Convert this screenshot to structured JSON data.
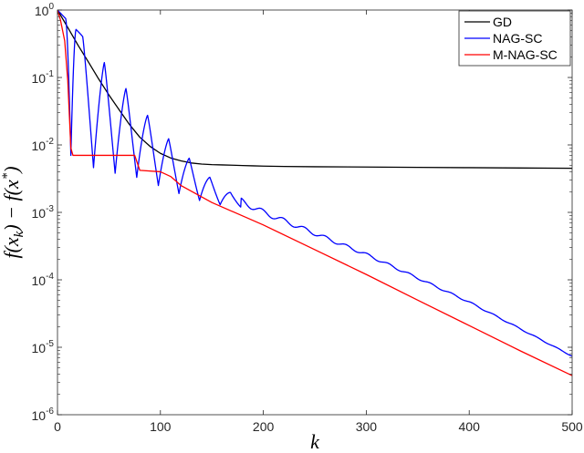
{
  "chart_data": {
    "type": "line",
    "title": "",
    "xlabel": "k",
    "ylabel": "f(x_k) − f(x*)",
    "yscale": "log",
    "xlim": [
      0,
      500
    ],
    "ylim": [
      1e-06,
      1
    ],
    "x_ticks": [
      0,
      100,
      200,
      300,
      400,
      500
    ],
    "x_tick_labels": [
      "0",
      "100",
      "200",
      "300",
      "400",
      "500"
    ],
    "y_ticks": [
      1e-06,
      1e-05,
      0.0001,
      0.001,
      0.01,
      0.1,
      1
    ],
    "y_tick_labels": [
      {
        "base": "10",
        "exp": "-6"
      },
      {
        "base": "10",
        "exp": "-5"
      },
      {
        "base": "10",
        "exp": "-4"
      },
      {
        "base": "10",
        "exp": "-3"
      },
      {
        "base": "10",
        "exp": "-2"
      },
      {
        "base": "10",
        "exp": "-1"
      },
      {
        "base": "10",
        "exp": "0"
      }
    ],
    "grid": false,
    "legend_position": "top-right",
    "series": [
      {
        "name": "GD",
        "color": "#000000",
        "x": [
          0,
          10,
          20,
          30,
          40,
          50,
          60,
          70,
          80,
          90,
          100,
          110,
          120,
          130,
          140,
          150,
          160,
          170,
          180,
          190,
          200,
          220,
          250,
          300,
          350,
          400,
          450,
          500
        ],
        "y": [
          1.0,
          0.55,
          0.3,
          0.17,
          0.095,
          0.055,
          0.033,
          0.02,
          0.013,
          0.0095,
          0.0075,
          0.0064,
          0.0058,
          0.0054,
          0.0052,
          0.0051,
          0.00505,
          0.005,
          0.00495,
          0.0049,
          0.00485,
          0.0048,
          0.00475,
          0.0047,
          0.00465,
          0.0046,
          0.00455,
          0.0045
        ]
      },
      {
        "name": "NAG-SC",
        "color": "#0000ff",
        "envelope_x": [
          0,
          23,
          45,
          66,
          87,
          108,
          128,
          148,
          170,
          200,
          250,
          300,
          350,
          400,
          450,
          500
        ],
        "envelope_y": [
          1.0,
          0.43,
          0.17,
          0.07,
          0.028,
          0.013,
          0.0066,
          0.0034,
          0.0019,
          0.0011,
          0.00052,
          0.00025,
          0.00011,
          4.8e-05,
          1.9e-05,
          7.5e-06
        ],
        "valley_x": [
          13,
          35,
          56,
          77,
          98,
          118,
          138,
          158,
          178
        ],
        "valley_y": [
          0.007,
          0.0046,
          0.0038,
          0.0033,
          0.0025,
          0.0019,
          0.0015,
          0.0013,
          0.0012
        ]
      },
      {
        "name": "M-NAG-SC",
        "color": "#ff0000",
        "x": [
          0,
          3,
          7,
          10,
          13,
          15,
          30,
          50,
          75,
          80,
          100,
          110,
          120,
          150,
          200,
          250,
          300,
          350,
          400,
          450,
          500
        ],
        "y": [
          1.0,
          0.7,
          0.35,
          0.09,
          0.009,
          0.007,
          0.007,
          0.007,
          0.007,
          0.0042,
          0.004,
          0.0034,
          0.0025,
          0.0014,
          0.00065,
          0.00028,
          0.00012,
          5e-05,
          2.1e-05,
          8.8e-06,
          3.8e-06
        ]
      }
    ]
  }
}
